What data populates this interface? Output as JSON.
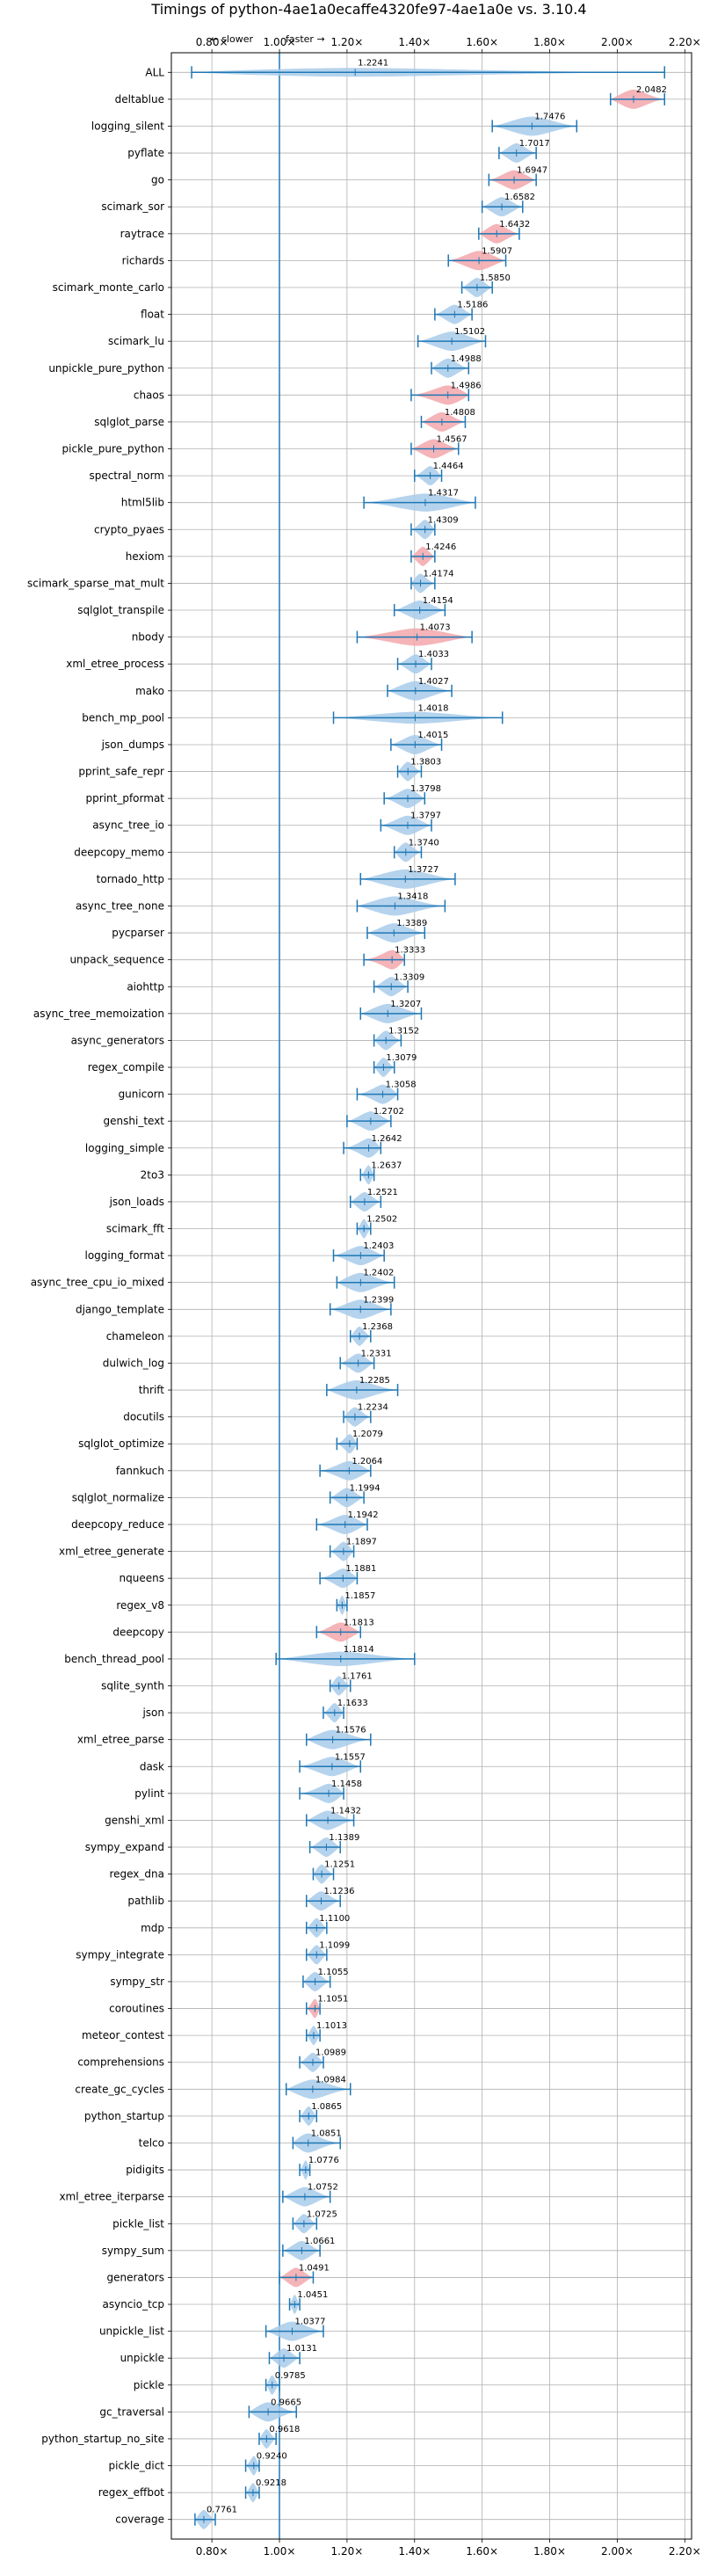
{
  "chart_data": {
    "type": "violin",
    "title": "Timings of python-4ae1a0ecaffe4320fe97-4ae1a0e vs. 3.10.4",
    "direction_slower": "← slower",
    "direction_faster": "faster →",
    "x_ticks": [
      "0.80×",
      "1.00×",
      "1.20×",
      "1.40×",
      "1.60×",
      "1.80×",
      "2.00×",
      "2.20×"
    ],
    "x_tick_values": [
      0.8,
      1.0,
      1.2,
      1.4,
      1.6,
      1.8,
      2.0,
      2.2
    ],
    "xlim": [
      0.68,
      2.22
    ],
    "reference_line": 1.0,
    "grid": true,
    "colors": {
      "normal": "#a8cbea",
      "regression": "#f2a7ab",
      "errorbar": "#1f77b4",
      "grid": "#b0b0b0"
    },
    "categories": [
      "ALL",
      "deltablue",
      "logging_silent",
      "pyflate",
      "go",
      "scimark_sor",
      "raytrace",
      "richards",
      "scimark_monte_carlo",
      "float",
      "scimark_lu",
      "unpickle_pure_python",
      "chaos",
      "sqlglot_parse",
      "pickle_pure_python",
      "spectral_norm",
      "html5lib",
      "crypto_pyaes",
      "hexiom",
      "scimark_sparse_mat_mult",
      "sqlglot_transpile",
      "nbody",
      "xml_etree_process",
      "mako",
      "bench_mp_pool",
      "json_dumps",
      "pprint_safe_repr",
      "pprint_pformat",
      "async_tree_io",
      "deepcopy_memo",
      "tornado_http",
      "async_tree_none",
      "pycparser",
      "unpack_sequence",
      "aiohttp",
      "async_tree_memoization",
      "async_generators",
      "regex_compile",
      "gunicorn",
      "genshi_text",
      "logging_simple",
      "2to3",
      "json_loads",
      "scimark_fft",
      "logging_format",
      "async_tree_cpu_io_mixed",
      "django_template",
      "chameleon",
      "dulwich_log",
      "thrift",
      "docutils",
      "sqlglot_optimize",
      "fannkuch",
      "sqlglot_normalize",
      "deepcopy_reduce",
      "xml_etree_generate",
      "nqueens",
      "regex_v8",
      "deepcopy",
      "bench_thread_pool",
      "sqlite_synth",
      "json",
      "xml_etree_parse",
      "dask",
      "pylint",
      "genshi_xml",
      "sympy_expand",
      "regex_dna",
      "pathlib",
      "mdp",
      "sympy_integrate",
      "sympy_str",
      "coroutines",
      "meteor_contest",
      "comprehensions",
      "create_gc_cycles",
      "python_startup",
      "telco",
      "pidigits",
      "xml_etree_iterparse",
      "pickle_list",
      "sympy_sum",
      "generators",
      "asyncio_tcp",
      "unpickle_list",
      "unpickle",
      "pickle",
      "gc_traversal",
      "python_startup_no_site",
      "pickle_dict",
      "regex_effbot",
      "coverage"
    ],
    "value_labels": [
      "1.2241",
      "2.0482",
      "1.7476",
      "1.7017",
      "1.6947",
      "1.6582",
      "1.6432",
      "1.5907",
      "1.5850",
      "1.5186",
      "1.5102",
      "1.4988",
      "1.4986",
      "1.4808",
      "1.4567",
      "1.4464",
      "1.4317",
      "1.4309",
      "1.4246",
      "1.4174",
      "1.4154",
      "1.4073",
      "1.4033",
      "1.4027",
      "1.4018",
      "1.4015",
      "1.3803",
      "1.3798",
      "1.3797",
      "1.3740",
      "1.3727",
      "1.3418",
      "1.3389",
      "1.3333",
      "1.3309",
      "1.3207",
      "1.3152",
      "1.3079",
      "1.3058",
      "1.2702",
      "1.2642",
      "1.2637",
      "1.2521",
      "1.2502",
      "1.2403",
      "1.2402",
      "1.2399",
      "1.2368",
      "1.2331",
      "1.2285",
      "1.2234",
      "1.2079",
      "1.2064",
      "1.1994",
      "1.1942",
      "1.1897",
      "1.1881",
      "1.1857",
      "1.1813",
      "1.1814",
      "1.1761",
      "1.1633",
      "1.1576",
      "1.1557",
      "1.1458",
      "1.1432",
      "1.1389",
      "1.1251",
      "1.1236",
      "1.1100",
      "1.1099",
      "1.1055",
      "1.1051",
      "1.1013",
      "1.0989",
      "1.0984",
      "1.0865",
      "1.0851",
      "1.0776",
      "1.0752",
      "1.0725",
      "1.0661",
      "1.0491",
      "1.0451",
      "1.0377",
      "1.0131",
      "0.9785",
      "0.9665",
      "0.9618",
      "0.9240",
      "0.9218",
      "0.7761"
    ],
    "values": [
      1.2241,
      2.0482,
      1.7476,
      1.7017,
      1.6947,
      1.6582,
      1.6432,
      1.5907,
      1.585,
      1.5186,
      1.5102,
      1.4988,
      1.4986,
      1.4808,
      1.4567,
      1.4464,
      1.4317,
      1.4309,
      1.4246,
      1.4174,
      1.4154,
      1.4073,
      1.4033,
      1.4027,
      1.4018,
      1.4015,
      1.3803,
      1.3798,
      1.3797,
      1.374,
      1.3727,
      1.3418,
      1.3389,
      1.3333,
      1.3309,
      1.3207,
      1.3152,
      1.3079,
      1.3058,
      1.2702,
      1.2642,
      1.2637,
      1.2521,
      1.2502,
      1.2403,
      1.2402,
      1.2399,
      1.2368,
      1.2331,
      1.2285,
      1.2234,
      1.2079,
      1.2064,
      1.1994,
      1.1942,
      1.1897,
      1.1881,
      1.1857,
      1.1813,
      1.1814,
      1.1761,
      1.1633,
      1.1576,
      1.1557,
      1.1458,
      1.1432,
      1.1389,
      1.1251,
      1.1236,
      1.11,
      1.1099,
      1.1055,
      1.1051,
      1.1013,
      1.0989,
      1.0984,
      1.0865,
      1.0851,
      1.0776,
      1.0752,
      1.0725,
      1.0661,
      1.0491,
      1.0451,
      1.0377,
      1.0131,
      0.9785,
      0.9665,
      0.9618,
      0.924,
      0.9218,
      0.7761
    ],
    "ranges": [
      [
        0.74,
        2.14
      ],
      [
        1.98,
        2.14
      ],
      [
        1.63,
        1.88
      ],
      [
        1.65,
        1.76
      ],
      [
        1.62,
        1.76
      ],
      [
        1.6,
        1.72
      ],
      [
        1.59,
        1.71
      ],
      [
        1.5,
        1.67
      ],
      [
        1.54,
        1.63
      ],
      [
        1.46,
        1.57
      ],
      [
        1.41,
        1.61
      ],
      [
        1.45,
        1.56
      ],
      [
        1.39,
        1.56
      ],
      [
        1.42,
        1.55
      ],
      [
        1.39,
        1.53
      ],
      [
        1.4,
        1.48
      ],
      [
        1.25,
        1.58
      ],
      [
        1.39,
        1.46
      ],
      [
        1.39,
        1.46
      ],
      [
        1.39,
        1.46
      ],
      [
        1.34,
        1.49
      ],
      [
        1.23,
        1.57
      ],
      [
        1.35,
        1.45
      ],
      [
        1.32,
        1.51
      ],
      [
        1.16,
        1.66
      ],
      [
        1.33,
        1.48
      ],
      [
        1.35,
        1.42
      ],
      [
        1.31,
        1.43
      ],
      [
        1.3,
        1.45
      ],
      [
        1.34,
        1.42
      ],
      [
        1.24,
        1.52
      ],
      [
        1.23,
        1.49
      ],
      [
        1.26,
        1.43
      ],
      [
        1.25,
        1.37
      ],
      [
        1.28,
        1.38
      ],
      [
        1.24,
        1.42
      ],
      [
        1.28,
        1.36
      ],
      [
        1.28,
        1.34
      ],
      [
        1.23,
        1.35
      ],
      [
        1.2,
        1.33
      ],
      [
        1.19,
        1.3
      ],
      [
        1.24,
        1.28
      ],
      [
        1.21,
        1.3
      ],
      [
        1.23,
        1.27
      ],
      [
        1.16,
        1.31
      ],
      [
        1.17,
        1.34
      ],
      [
        1.15,
        1.33
      ],
      [
        1.21,
        1.27
      ],
      [
        1.18,
        1.28
      ],
      [
        1.14,
        1.35
      ],
      [
        1.19,
        1.27
      ],
      [
        1.17,
        1.23
      ],
      [
        1.12,
        1.27
      ],
      [
        1.15,
        1.25
      ],
      [
        1.11,
        1.26
      ],
      [
        1.15,
        1.22
      ],
      [
        1.12,
        1.23
      ],
      [
        1.17,
        1.2
      ],
      [
        1.11,
        1.24
      ],
      [
        0.99,
        1.4
      ],
      [
        1.15,
        1.21
      ],
      [
        1.13,
        1.19
      ],
      [
        1.08,
        1.27
      ],
      [
        1.06,
        1.24
      ],
      [
        1.06,
        1.19
      ],
      [
        1.08,
        1.22
      ],
      [
        1.09,
        1.18
      ],
      [
        1.1,
        1.16
      ],
      [
        1.08,
        1.18
      ],
      [
        1.08,
        1.14
      ],
      [
        1.08,
        1.14
      ],
      [
        1.07,
        1.15
      ],
      [
        1.08,
        1.12
      ],
      [
        1.08,
        1.12
      ],
      [
        1.06,
        1.13
      ],
      [
        1.02,
        1.21
      ],
      [
        1.06,
        1.11
      ],
      [
        1.04,
        1.18
      ],
      [
        1.06,
        1.09
      ],
      [
        1.01,
        1.15
      ],
      [
        1.04,
        1.11
      ],
      [
        1.01,
        1.12
      ],
      [
        1.0,
        1.1
      ],
      [
        1.03,
        1.06
      ],
      [
        0.96,
        1.13
      ],
      [
        0.97,
        1.06
      ],
      [
        0.96,
        1.0
      ],
      [
        0.91,
        1.05
      ],
      [
        0.94,
        0.99
      ],
      [
        0.9,
        0.94
      ],
      [
        0.9,
        0.94
      ],
      [
        0.75,
        0.81
      ]
    ],
    "regressions": [
      "deltablue",
      "go",
      "raytrace",
      "richards",
      "chaos",
      "sqlglot_parse",
      "pickle_pure_python",
      "hexiom",
      "nbody",
      "unpack_sequence",
      "deepcopy",
      "coroutines",
      "generators"
    ]
  }
}
